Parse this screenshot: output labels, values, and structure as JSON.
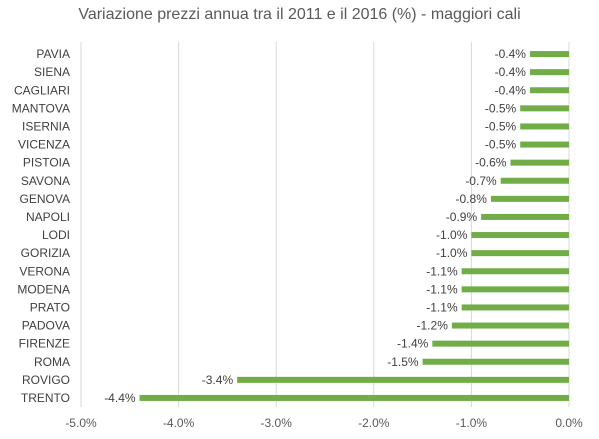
{
  "chart_data": {
    "type": "bar",
    "orientation": "horizontal",
    "title": "Variazione prezzi annua tra il 2011 e il 2016 (%) - maggiori cali",
    "categories": [
      "PAVIA",
      "SIENA",
      "CAGLIARI",
      "MANTOVA",
      "ISERNIA",
      "VICENZA",
      "PISTOIA",
      "SAVONA",
      "GENOVA",
      "NAPOLI",
      "LODI",
      "GORIZIA",
      "VERONA",
      "MODENA",
      "PRATO",
      "PADOVA",
      "FIRENZE",
      "ROMA",
      "ROVIGO",
      "TRENTO"
    ],
    "values": [
      -0.4,
      -0.4,
      -0.4,
      -0.5,
      -0.5,
      -0.5,
      -0.6,
      -0.7,
      -0.8,
      -0.9,
      -1.0,
      -1.0,
      -1.1,
      -1.1,
      -1.1,
      -1.2,
      -1.4,
      -1.5,
      -3.4,
      -4.4
    ],
    "value_labels": [
      "-0.4%",
      "-0.4%",
      "-0.4%",
      "-0.5%",
      "-0.5%",
      "-0.5%",
      "-0.6%",
      "-0.7%",
      "-0.8%",
      "-0.9%",
      "-1.0%",
      "-1.0%",
      "-1.1%",
      "-1.1%",
      "-1.1%",
      "-1.2%",
      "-1.4%",
      "-1.5%",
      "-3.4%",
      "-4.4%"
    ],
    "xlim": [
      -5.0,
      0.0
    ],
    "x_ticks": [
      -5.0,
      -4.0,
      -3.0,
      -2.0,
      -1.0,
      0.0
    ],
    "x_tick_labels": [
      "-5.0%",
      "-4.0%",
      "-3.0%",
      "-2.0%",
      "-1.0%",
      "0.0%"
    ],
    "bar_color": "#70ad47",
    "grid": true,
    "legend": false
  }
}
